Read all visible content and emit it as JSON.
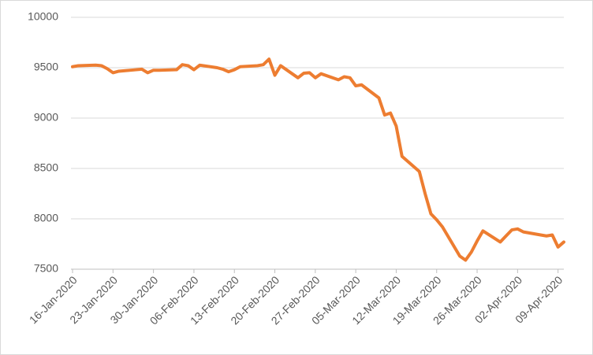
{
  "chart_data": {
    "type": "line",
    "x": [
      "16-Jan-2020",
      "17-Jan-2020",
      "20-Jan-2020",
      "21-Jan-2020",
      "22-Jan-2020",
      "23-Jan-2020",
      "24-Jan-2020",
      "27-Jan-2020",
      "28-Jan-2020",
      "29-Jan-2020",
      "30-Jan-2020",
      "31-Jan-2020",
      "03-Feb-2020",
      "04-Feb-2020",
      "05-Feb-2020",
      "06-Feb-2020",
      "07-Feb-2020",
      "10-Feb-2020",
      "11-Feb-2020",
      "12-Feb-2020",
      "13-Feb-2020",
      "14-Feb-2020",
      "17-Feb-2020",
      "18-Feb-2020",
      "19-Feb-2020",
      "20-Feb-2020",
      "21-Feb-2020",
      "24-Feb-2020",
      "25-Feb-2020",
      "26-Feb-2020",
      "27-Feb-2020",
      "28-Feb-2020",
      "02-Mar-2020",
      "03-Mar-2020",
      "04-Mar-2020",
      "05-Mar-2020",
      "06-Mar-2020",
      "09-Mar-2020",
      "10-Mar-2020",
      "11-Mar-2020",
      "12-Mar-2020",
      "13-Mar-2020",
      "16-Mar-2020",
      "17-Mar-2020",
      "18-Mar-2020",
      "19-Mar-2020",
      "20-Mar-2020",
      "23-Mar-2020",
      "24-Mar-2020",
      "25-Mar-2020",
      "26-Mar-2020",
      "27-Mar-2020",
      "30-Mar-2020",
      "31-Mar-2020",
      "01-Apr-2020",
      "02-Apr-2020",
      "03-Apr-2020",
      "06-Apr-2020",
      "07-Apr-2020",
      "08-Apr-2020",
      "09-Apr-2020",
      "10-Apr-2020"
    ],
    "series": [
      {
        "color": "#ed7d31",
        "values": [
          9510,
          9520,
          9525,
          9520,
          9490,
          9450,
          9465,
          9480,
          9485,
          9450,
          9475,
          9475,
          9480,
          9530,
          9520,
          9480,
          9525,
          9500,
          9485,
          9460,
          9480,
          9510,
          9520,
          9530,
          9585,
          9425,
          9520,
          9400,
          9445,
          9450,
          9400,
          9440,
          9380,
          9410,
          9400,
          9320,
          9330,
          9200,
          9030,
          9050,
          8920,
          8620,
          8470,
          8250,
          8050,
          7990,
          7920,
          7630,
          7590,
          7670,
          7780,
          7880,
          7770,
          7830,
          7890,
          7900,
          7870,
          7840,
          7830,
          7840,
          7720,
          7770
        ]
      }
    ],
    "xlim": [
      "16-Jan-2020",
      "10-Apr-2020"
    ],
    "xticks": [
      "16-Jan-2020",
      "23-Jan-2020",
      "30-Jan-2020",
      "06-Feb-2020",
      "13-Feb-2020",
      "20-Feb-2020",
      "27-Feb-2020",
      "05-Mar-2020",
      "12-Mar-2020",
      "19-Mar-2020",
      "26-Mar-2020",
      "02-Apr-2020",
      "09-Apr-2020"
    ],
    "ylim": [
      7500,
      10000
    ],
    "yticks": [
      7500,
      8000,
      8500,
      9000,
      9500,
      10000
    ],
    "grid": true
  }
}
